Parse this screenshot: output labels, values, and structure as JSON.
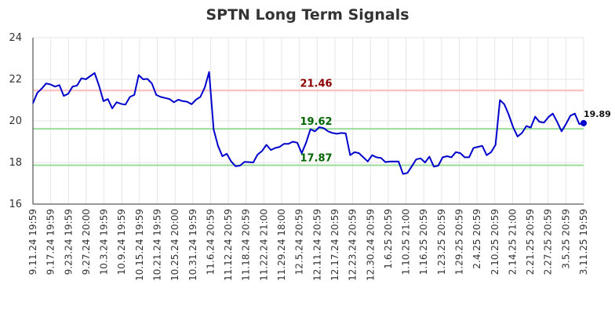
{
  "chart_data": {
    "type": "line",
    "title": "SPTN Long Term Signals",
    "xlabel": "",
    "ylabel": "",
    "ylim": [
      16,
      24
    ],
    "y_ticks": [
      16,
      18,
      20,
      22,
      24
    ],
    "grid": true,
    "x_tick_labels": [
      "9.11.24 19:59",
      "9.17.24 19:59",
      "9.23.24 19:59",
      "9.27.24 20:00",
      "10.3.24 19:59",
      "10.9.24 19:59",
      "10.15.24 19:59",
      "10.21.24 19:59",
      "10.25.24 20:00",
      "10.31.24 19:59",
      "11.6.24 20:59",
      "11.12.24 20:59",
      "11.18.24 20:59",
      "11.22.24 21:00",
      "11.29.24 18:00",
      "12.5.24 20:59",
      "12.11.24 20:59",
      "12.17.24 20:59",
      "12.23.24 20:59",
      "12.30.24 20:59",
      "1.6.25 20:59",
      "1.10.25 21:00",
      "1.16.25 20:59",
      "1.23.25 20:59",
      "1.29.25 20:59",
      "2.4.25 20:59",
      "2.10.25 20:59",
      "2.14.25 21:00",
      "2.21.25 20:59",
      "2.27.25 20:59",
      "3.5.25 20:59",
      "3.11.25 19:59"
    ],
    "levels": [
      {
        "label": "21.46",
        "value": 21.46,
        "line_color": "#ffbbbb",
        "text_color": "#8b0000"
      },
      {
        "label": "19.62",
        "value": 19.62,
        "line_color": "#99dd99",
        "text_color": "#006400"
      },
      {
        "label": "17.87",
        "value": 17.87,
        "line_color": "#99dd99",
        "text_color": "#006400"
      }
    ],
    "last_value_label": "19.89",
    "line_color": "#0000cc",
    "series": [
      {
        "values": [
          20.85,
          21.35,
          21.55,
          21.8,
          21.75,
          21.65,
          21.72,
          21.2,
          21.3,
          21.65,
          21.7,
          22.05,
          22.0,
          22.15,
          22.3,
          21.7,
          20.95,
          21.05,
          20.6,
          20.9,
          20.82,
          20.78,
          21.15,
          21.25,
          22.2,
          22.0,
          22.02,
          21.8,
          21.25,
          21.15,
          21.1,
          21.05,
          20.9,
          21.02,
          20.95,
          20.92,
          20.8,
          21.02,
          21.15,
          21.6,
          22.35,
          19.6,
          18.8,
          18.3,
          18.42,
          18.05,
          17.82,
          17.85,
          18.03,
          18.02,
          18.0,
          18.38,
          18.55,
          18.85,
          18.6,
          18.7,
          18.75,
          18.9,
          18.9,
          19.0,
          18.95,
          18.45,
          18.95,
          19.6,
          19.5,
          19.7,
          19.65,
          19.5,
          19.42,
          19.38,
          19.42,
          19.4,
          18.35,
          18.5,
          18.45,
          18.25,
          18.05,
          18.35,
          18.25,
          18.22,
          18.02,
          18.05,
          18.05,
          18.05,
          17.45,
          17.5,
          17.82,
          18.15,
          18.2,
          18.0,
          18.28,
          17.8,
          17.85,
          18.25,
          18.3,
          18.25,
          18.5,
          18.45,
          18.25,
          18.25,
          18.7,
          18.75,
          18.8,
          18.35,
          18.5,
          18.85,
          21.0,
          20.8,
          20.3,
          19.7,
          19.25,
          19.42,
          19.75,
          19.68,
          20.2,
          19.95,
          19.92,
          20.18,
          20.35,
          19.95,
          19.5,
          19.85,
          20.25,
          20.35,
          19.85,
          19.89
        ]
      }
    ]
  }
}
